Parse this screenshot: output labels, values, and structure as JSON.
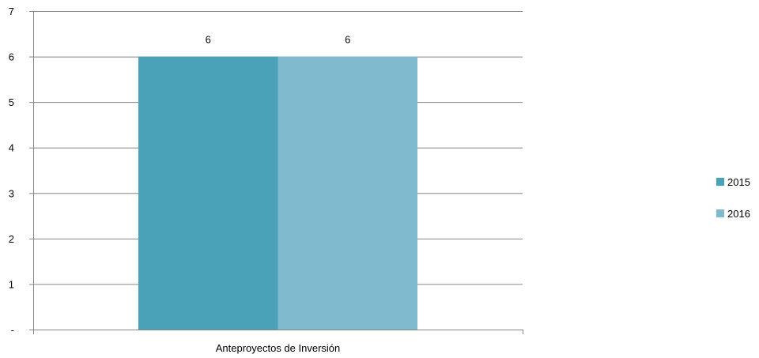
{
  "chart_data": {
    "type": "bar",
    "title": "",
    "xlabel": "",
    "ylabel": "",
    "categories": [
      "Anteproyectos de Inversión"
    ],
    "series": [
      {
        "name": "2015",
        "values": [
          6
        ],
        "color": "#4aa2b9"
      },
      {
        "name": "2016",
        "values": [
          6
        ],
        "color": "#7fbacf"
      }
    ],
    "data_labels": [
      "6",
      "6"
    ],
    "ylim": [
      0,
      7
    ],
    "y_ticks": [
      0,
      1,
      2,
      3,
      4,
      5,
      6,
      7
    ],
    "y_tick_labels": [
      "-",
      "1",
      "2",
      "3",
      "4",
      "5",
      "6",
      "7"
    ],
    "grid": true,
    "grid_color": "#868686",
    "legend_position": "right"
  }
}
